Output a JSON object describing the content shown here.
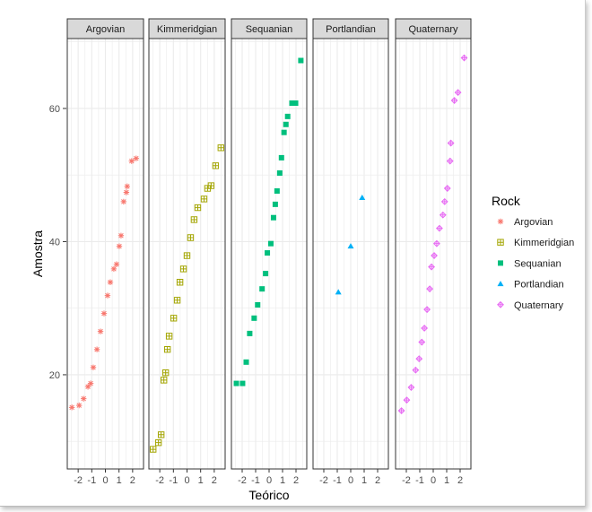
{
  "chart_data": {
    "type": "scatter",
    "subtype": "faceted-qq",
    "xlabel": "Teórico",
    "ylabel": "Amostra",
    "xlim": [
      -2.8,
      2.8
    ],
    "ylim": [
      5.85,
      70.5
    ],
    "x_ticks": [
      "-2",
      "-1",
      "0",
      "1",
      "2"
    ],
    "y_ticks": [
      "20",
      "40",
      "60"
    ],
    "grid": true,
    "legend": {
      "title": "Rock",
      "position": "right"
    },
    "colors": {
      "Argovian": "#F8766D",
      "Kimmeridgian": "#A3A500",
      "Sequanian": "#00BF7D",
      "Portlandian": "#00B0F6",
      "Quaternary": "#E76BF3"
    },
    "series": [
      {
        "name": "Argovian",
        "shape": "asterisk",
        "x": [
          -2.46,
          -1.93,
          -1.6,
          -1.28,
          -1.08,
          -0.89,
          -0.62,
          -0.36,
          -0.1,
          0.16,
          0.36,
          0.62,
          0.82,
          1.02,
          1.15,
          1.34,
          1.54,
          1.6,
          1.93,
          2.26
        ],
        "y": [
          15.1,
          15.4,
          16.4,
          18.2,
          18.7,
          21.1,
          23.8,
          26.5,
          29.2,
          31.9,
          33.9,
          35.9,
          36.6,
          39.3,
          40.9,
          46.0,
          47.4,
          48.3,
          52.1,
          52.5
        ]
      },
      {
        "name": "Kimmeridgian",
        "shape": "boxplus",
        "x": [
          -2.49,
          -2.1,
          -1.9,
          -1.7,
          -1.57,
          -1.44,
          -1.31,
          -0.98,
          -0.72,
          -0.52,
          -0.26,
          0,
          0.26,
          0.52,
          0.79,
          1.25,
          1.51,
          1.77,
          2.1,
          2.49
        ],
        "y": [
          8.8,
          9.8,
          11.0,
          19.2,
          20.3,
          23.8,
          25.8,
          28.5,
          31.2,
          33.9,
          35.9,
          37.9,
          40.6,
          43.3,
          45.1,
          46.4,
          48.0,
          48.4,
          51.4,
          54.1
        ]
      },
      {
        "name": "Sequanian",
        "shape": "square",
        "x": [
          -2.43,
          -1.97,
          -1.7,
          -1.44,
          -1.11,
          -0.85,
          -0.52,
          -0.26,
          -0.13,
          0.13,
          0.33,
          0.46,
          0.59,
          0.79,
          0.92,
          1.11,
          1.25,
          1.38,
          1.7,
          1.97,
          2.36
        ],
        "y": [
          18.7,
          18.7,
          21.9,
          26.2,
          28.5,
          30.5,
          32.9,
          35.2,
          38.3,
          39.7,
          43.6,
          45.6,
          47.6,
          50.3,
          52.6,
          56.4,
          57.6,
          58.8,
          60.8,
          60.8,
          67.2
        ]
      },
      {
        "name": "Portlandian",
        "shape": "triangle",
        "x": [
          -0.92,
          0,
          0.85
        ],
        "y": [
          32.4,
          39.3,
          46.6
        ]
      },
      {
        "name": "Quaternary",
        "shape": "circleplus",
        "x": [
          -2.36,
          -1.97,
          -1.64,
          -1.31,
          -1.05,
          -0.85,
          -0.66,
          -0.46,
          -0.26,
          -0.13,
          0.07,
          0.26,
          0.46,
          0.72,
          0.85,
          1.05,
          1.25,
          1.31,
          1.57,
          1.84,
          2.3
        ],
        "y": [
          14.6,
          16.2,
          18.1,
          20.7,
          22.4,
          24.9,
          27.0,
          29.8,
          32.9,
          36.2,
          37.9,
          39.7,
          42.0,
          44.0,
          46.0,
          48.0,
          52.1,
          54.8,
          61.2,
          62.4,
          67.6
        ]
      }
    ]
  }
}
